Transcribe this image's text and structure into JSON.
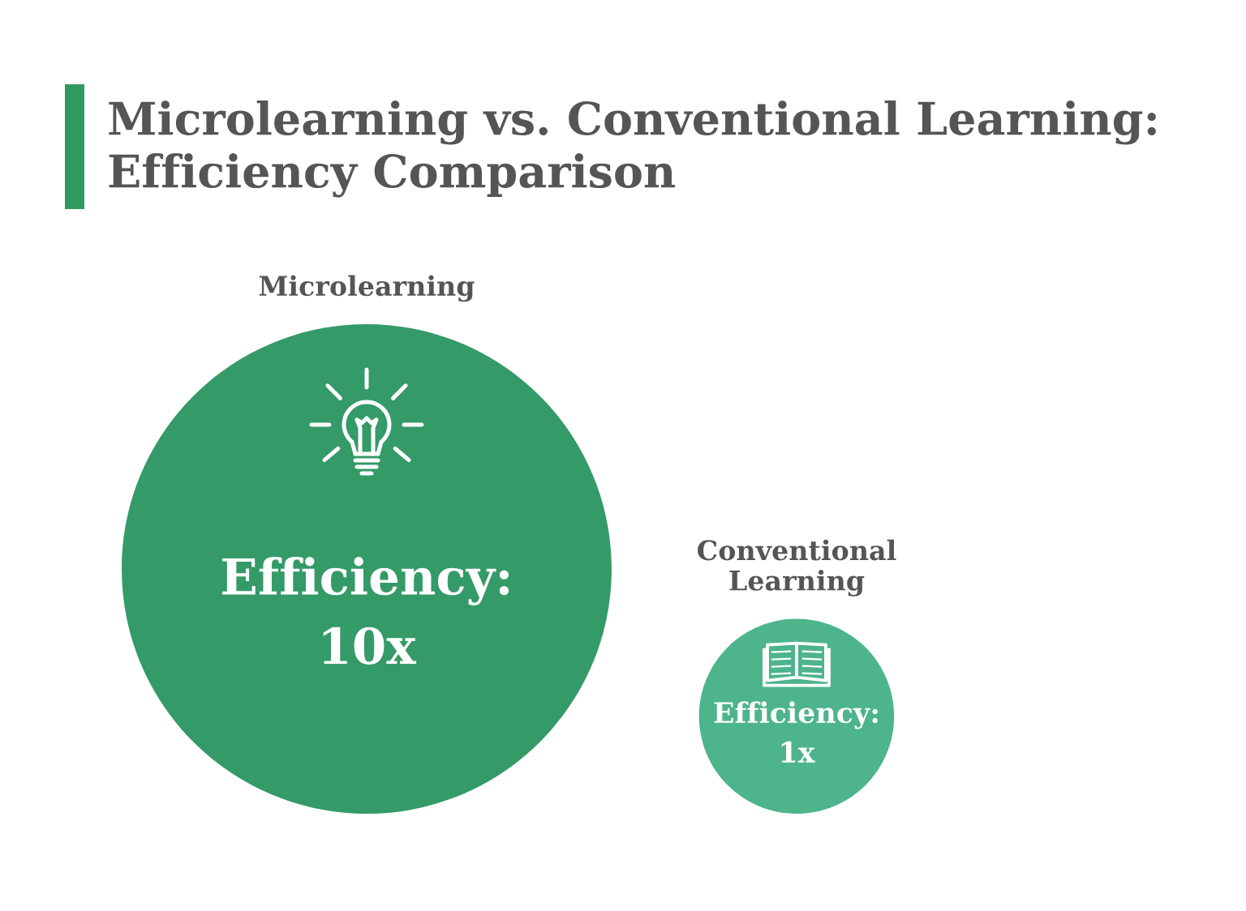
{
  "chart_data": {
    "type": "other",
    "title": "Microlearning vs. Conventional Learning:\nEfficiency Comparison",
    "categories": [
      "Microlearning",
      "Conventional\nLearning"
    ],
    "values": [
      10,
      1
    ],
    "value_labels": [
      "Efficiency:\n10x",
      "Efficiency:\n1x"
    ],
    "colors": [
      "#349a67",
      "#4db48c"
    ]
  }
}
